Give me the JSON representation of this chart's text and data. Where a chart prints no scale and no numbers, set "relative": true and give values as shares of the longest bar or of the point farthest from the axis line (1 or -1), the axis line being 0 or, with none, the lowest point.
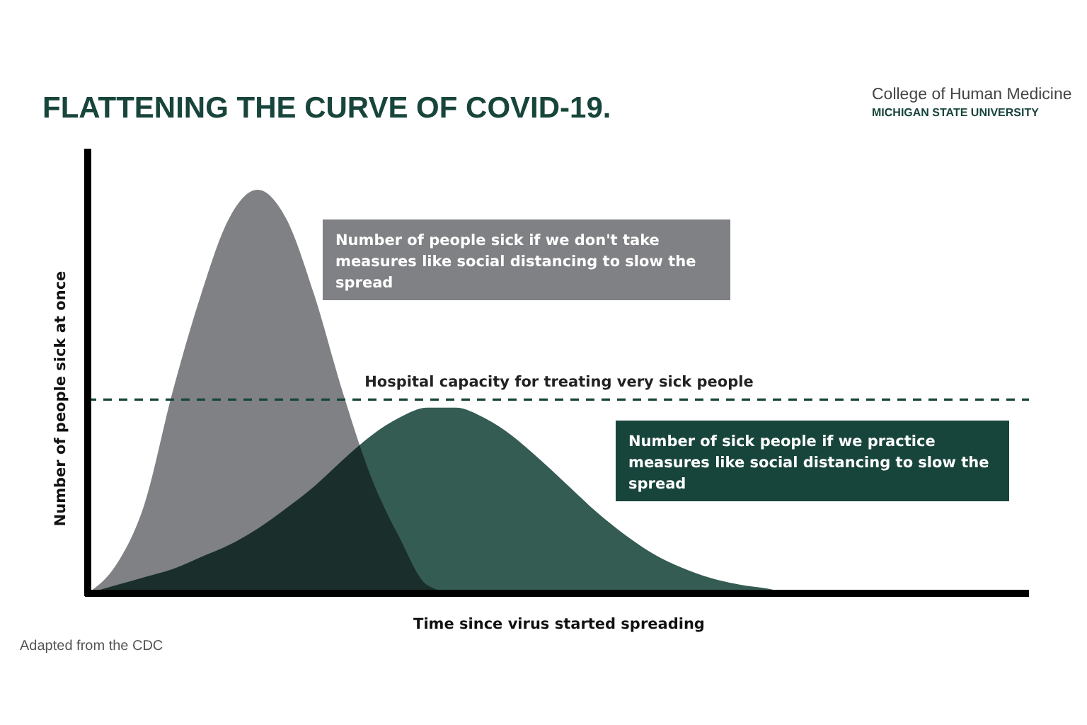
{
  "chart_data": {
    "type": "area",
    "relative": true,
    "title": "FLATTENING THE CURVE OF COVID-19.",
    "xlabel": "Time since virus started spreading",
    "ylabel": "Number of people sick at once",
    "categories": [
      null,
      null,
      null,
      null,
      null,
      null,
      null,
      null,
      null,
      null,
      null,
      null,
      null,
      null,
      null,
      null,
      null,
      null,
      null,
      null,
      null,
      null,
      null,
      null,
      null,
      null,
      null,
      null,
      null,
      null,
      null,
      null,
      null,
      null
    ],
    "series": [
      {
        "name": "Number of people sick if we don't take measures like social distancing to slow the spread",
        "color": "#808184",
        "values": [
          0,
          0.07,
          0.22,
          0.5,
          0.74,
          0.93,
          1,
          0.93,
          0.74,
          0.5,
          0.29,
          0.14,
          0.02,
          0,
          0,
          0,
          0,
          0,
          0,
          0,
          0,
          0,
          0,
          0,
          0,
          0,
          0,
          0,
          0,
          0,
          0,
          0,
          0,
          0
        ]
      },
      {
        "name": "Number of sick people if we practice measures like social distancing to slow the spread",
        "color": "#18453b",
        "values": [
          0,
          0.02,
          0.04,
          0.06,
          0.09,
          0.12,
          0.16,
          0.21,
          0.265,
          0.33,
          0.39,
          0.435,
          0.46,
          0.46,
          0.435,
          0.39,
          0.33,
          0.265,
          0.2,
          0.144,
          0.097,
          0.063,
          0.038,
          0.022,
          0.012,
          0,
          0,
          0,
          0,
          0,
          0,
          0,
          0,
          0
        ]
      }
    ],
    "ref_lines": [
      {
        "axis": "y",
        "value": 0.48,
        "label": "Hospital capacity for treating very sick people",
        "color": "#18453b",
        "line_style": "dashed"
      }
    ],
    "annotations": [
      "Adapted from the CDC",
      "College of Human Medicine",
      "MICHIGAN STATE UNIVERSITY"
    ]
  }
}
